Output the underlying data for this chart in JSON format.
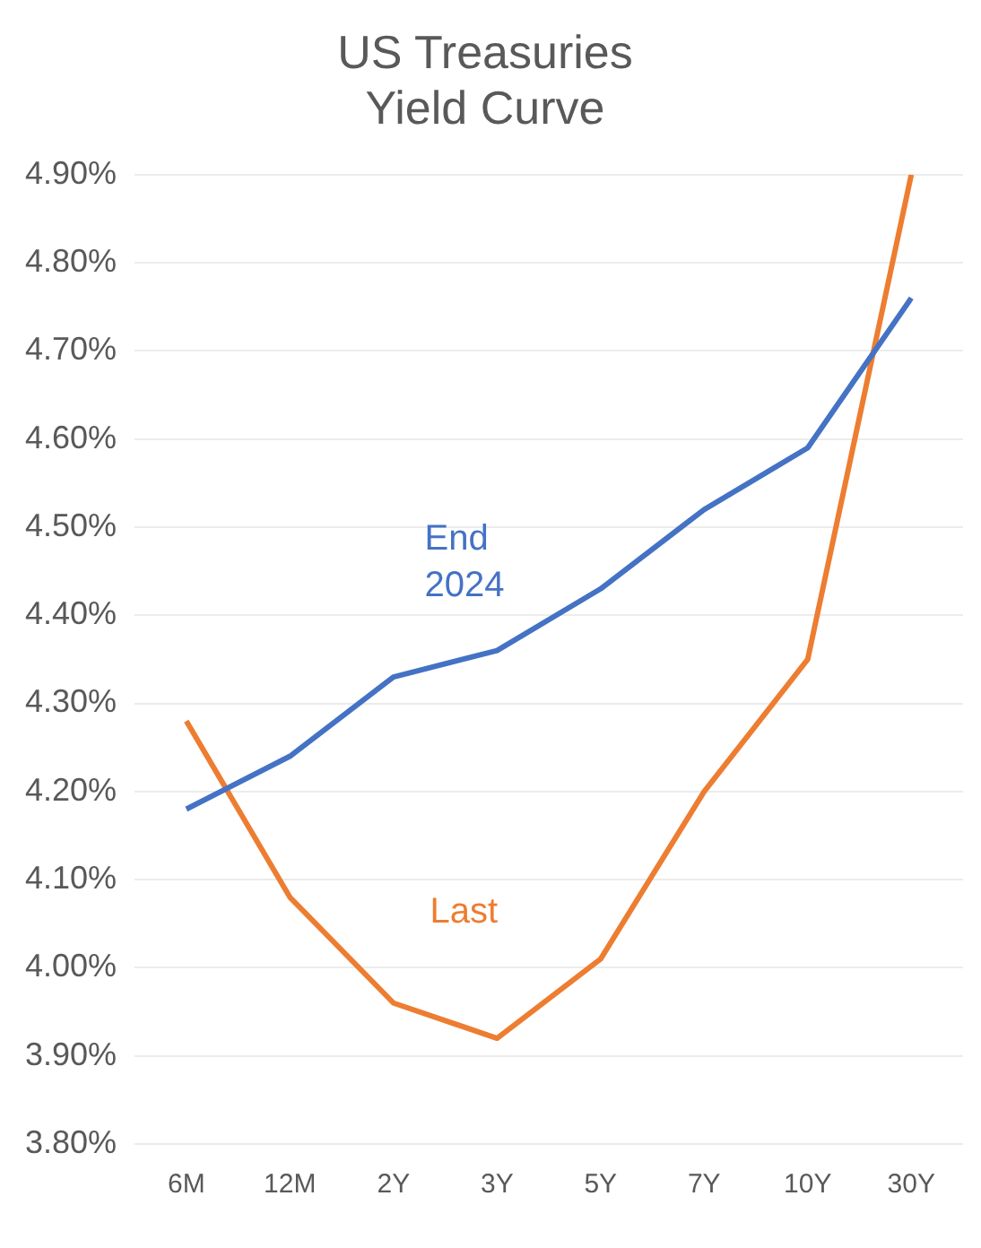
{
  "chart_data": {
    "type": "line",
    "title": "US Treasuries\nYield Curve",
    "categories": [
      "6M",
      "12M",
      "2Y",
      "3Y",
      "5Y",
      "7Y",
      "10Y",
      "30Y"
    ],
    "series": [
      {
        "name": "End 2024",
        "color": "#4472c4",
        "values": [
          4.18,
          4.24,
          4.33,
          4.36,
          4.43,
          4.52,
          4.59,
          4.76
        ]
      },
      {
        "name": "Last",
        "color": "#ed7d31",
        "values": [
          4.28,
          4.08,
          3.96,
          3.92,
          4.01,
          4.2,
          4.35,
          4.9
        ]
      }
    ],
    "ylim": [
      3.8,
      4.9
    ],
    "yticks": [
      {
        "value": 3.8,
        "label": "3.80%"
      },
      {
        "value": 3.9,
        "label": "3.90%"
      },
      {
        "value": 4.0,
        "label": "4.00%"
      },
      {
        "value": 4.1,
        "label": "4.10%"
      },
      {
        "value": 4.2,
        "label": "4.20%"
      },
      {
        "value": 4.3,
        "label": "4.30%"
      },
      {
        "value": 4.4,
        "label": "4.40%"
      },
      {
        "value": 4.5,
        "label": "4.50%"
      },
      {
        "value": 4.6,
        "label": "4.60%"
      },
      {
        "value": 4.7,
        "label": "4.70%"
      },
      {
        "value": 4.8,
        "label": "4.80%"
      },
      {
        "value": 4.9,
        "label": "4.90%"
      }
    ],
    "grid": "y",
    "legend": false,
    "marker": "none",
    "line_style": "solid"
  }
}
